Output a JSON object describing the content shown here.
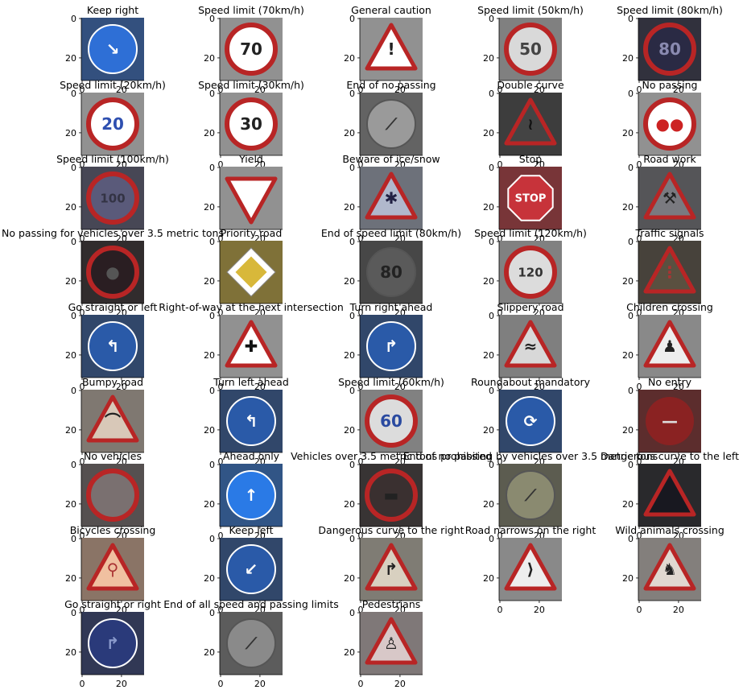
{
  "figure": {
    "panels": [
      {
        "title": "Keep right",
        "shape": "circle",
        "color": "#2e6fd6",
        "glyph": "↘",
        "glyph_color": "#ffffff"
      },
      {
        "title": "Speed limit (70km/h)",
        "shape": "circle_red",
        "color": "#ffffff",
        "glyph": "70",
        "glyph_color": "#222222"
      },
      {
        "title": "General caution",
        "shape": "triangle",
        "color": "#ffffff",
        "glyph": "!",
        "glyph_color": "#222222"
      },
      {
        "title": "Speed limit (50km/h)",
        "shape": "circle_red",
        "color": "#d9d9d9",
        "glyph": "50",
        "glyph_color": "#444444"
      },
      {
        "title": "Speed limit (80km/h)",
        "shape": "circle_red",
        "color": "#2a2a44",
        "glyph": "80",
        "glyph_color": "#8a8ab0"
      },
      {
        "title": "Speed limit (20km/h)",
        "shape": "circle_red",
        "color": "#ffffff",
        "glyph": "20",
        "glyph_color": "#2e4fb0"
      },
      {
        "title": "Speed limit (30km/h)",
        "shape": "circle_red",
        "color": "#ffffff",
        "glyph": "30",
        "glyph_color": "#222222"
      },
      {
        "title": "End of no passing",
        "shape": "circle_gray",
        "color": "#9a9a9a",
        "glyph": "⟋",
        "glyph_color": "#333333"
      },
      {
        "title": "Double curve",
        "shape": "triangle",
        "color": "#444444",
        "glyph": "≀",
        "glyph_color": "#111111"
      },
      {
        "title": "No passing",
        "shape": "circle_red",
        "color": "#ffffff",
        "glyph": "●●",
        "glyph_color": "#cc2222"
      },
      {
        "title": "Speed limit (100km/h)",
        "shape": "circle_red",
        "color": "#5a5a7a",
        "glyph": "100",
        "glyph_color": "#333344"
      },
      {
        "title": "Yield",
        "shape": "triangle_down",
        "color": "#ffffff",
        "glyph": "",
        "glyph_color": "#000000"
      },
      {
        "title": "Beware of ice/snow",
        "shape": "triangle",
        "color": "#b0b8cc",
        "glyph": "✱",
        "glyph_color": "#222244"
      },
      {
        "title": "Stop",
        "shape": "octagon",
        "color": "#c7333a",
        "glyph": "STOP",
        "glyph_color": "#ffffff"
      },
      {
        "title": "Road work",
        "shape": "triangle",
        "color": "#7a7a80",
        "glyph": "⚒",
        "glyph_color": "#222222"
      },
      {
        "title": "No passing for vehicles over 3.5 metric tons",
        "shape": "circle_red",
        "color": "#2a1e22",
        "glyph": "●",
        "glyph_color": "#555555"
      },
      {
        "title": "Priority road",
        "shape": "diamond",
        "color": "#d8b83a",
        "glyph": "",
        "glyph_color": "#000000"
      },
      {
        "title": "End of speed limit (80km/h)",
        "shape": "circle_gray",
        "color": "#5a5a5a",
        "glyph": "80",
        "glyph_color": "#222222"
      },
      {
        "title": "Speed limit (120km/h)",
        "shape": "circle_red",
        "color": "#dcdcdc",
        "glyph": "120",
        "glyph_color": "#333333"
      },
      {
        "title": "Traffic signals",
        "shape": "triangle",
        "color": "#5a5040",
        "glyph": "⋮",
        "glyph_color": "#aa3333"
      },
      {
        "title": "Go straight or left",
        "shape": "circle",
        "color": "#2a5aa8",
        "glyph": "↰",
        "glyph_color": "#ffffff"
      },
      {
        "title": "Right-of-way at the next intersection",
        "shape": "triangle",
        "color": "#ffffff",
        "glyph": "✚",
        "glyph_color": "#111111"
      },
      {
        "title": "Turn right ahead",
        "shape": "circle",
        "color": "#2a5aa8",
        "glyph": "↱",
        "glyph_color": "#ffffff"
      },
      {
        "title": "Slippery road",
        "shape": "triangle",
        "color": "#d8d8d8",
        "glyph": "≈",
        "glyph_color": "#222222"
      },
      {
        "title": "Children crossing",
        "shape": "triangle",
        "color": "#eeeeee",
        "glyph": "♟",
        "glyph_color": "#222222"
      },
      {
        "title": "Bumpy road",
        "shape": "triangle",
        "color": "#d8c8b8",
        "glyph": "⌒",
        "glyph_color": "#222222"
      },
      {
        "title": "Turn left ahead",
        "shape": "circle",
        "color": "#2a5aa8",
        "glyph": "↰",
        "glyph_color": "#ffffff"
      },
      {
        "title": "Speed limit (60km/h)",
        "shape": "circle_red",
        "color": "#dcdcdc",
        "glyph": "60",
        "glyph_color": "#2a4aa0"
      },
      {
        "title": "Roundabout mandatory",
        "shape": "circle",
        "color": "#2a5aa8",
        "glyph": "⟳",
        "glyph_color": "#ffffff"
      },
      {
        "title": "No entry",
        "shape": "circle_red_fill",
        "color": "#8a2222",
        "glyph": "—",
        "glyph_color": "#dddddd"
      },
      {
        "title": "No vehicles",
        "shape": "circle_red",
        "color": "#7a7070",
        "glyph": "",
        "glyph_color": "#000000"
      },
      {
        "title": "Ahead only",
        "shape": "circle",
        "color": "#2a7ae6",
        "glyph": "↑",
        "glyph_color": "#ffffff"
      },
      {
        "title": "Vehicles over 3.5 metric tons prohibited",
        "shape": "circle_red",
        "color": "#3a3030",
        "glyph": "▬",
        "glyph_color": "#222222"
      },
      {
        "title": "End of no passing by vehicles over 3.5 metric tons",
        "shape": "circle_gray",
        "color": "#8a8a70",
        "glyph": "⟋",
        "glyph_color": "#333333"
      },
      {
        "title": "Dangerous curve to the left",
        "shape": "triangle",
        "color": "#181820",
        "glyph": "",
        "glyph_color": "#000000"
      },
      {
        "title": "Bicycles crossing",
        "shape": "triangle",
        "color": "#f0c0a0",
        "glyph": "⚲",
        "glyph_color": "#aa3333"
      },
      {
        "title": "Keep left",
        "shape": "circle",
        "color": "#2a5aa8",
        "glyph": "↙",
        "glyph_color": "#ffffff"
      },
      {
        "title": "Dangerous curve to the right",
        "shape": "triangle",
        "color": "#d8d0c0",
        "glyph": "↱",
        "glyph_color": "#222222"
      },
      {
        "title": "Road narrows on the right",
        "shape": "triangle",
        "color": "#eeeeee",
        "glyph": "⟩",
        "glyph_color": "#222222"
      },
      {
        "title": "Wild animals crossing",
        "shape": "triangle",
        "color": "#e0d8d0",
        "glyph": "♞",
        "glyph_color": "#222222"
      },
      {
        "title": "Go straight or right",
        "shape": "circle",
        "color": "#2a3a7a",
        "glyph": "↱",
        "glyph_color": "#8a9acc"
      },
      {
        "title": "End of all speed and passing limits",
        "shape": "circle_gray",
        "color": "#8a8a8a",
        "glyph": "⟋",
        "glyph_color": "#333333"
      },
      {
        "title": "Pedestrians",
        "shape": "triangle",
        "color": "#d8c8c8",
        "glyph": "♙",
        "glyph_color": "#222222"
      }
    ],
    "tick_labels": [
      "0",
      "20"
    ]
  }
}
